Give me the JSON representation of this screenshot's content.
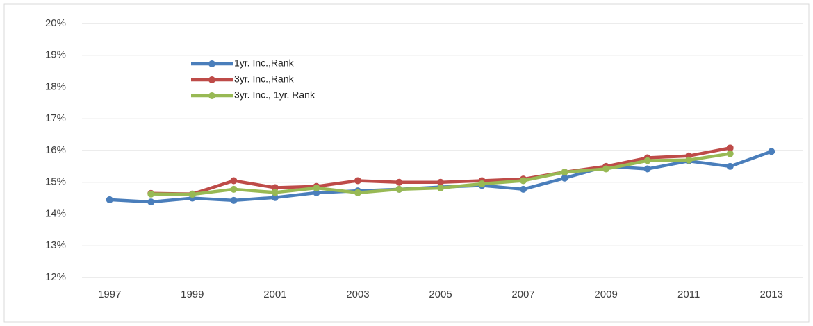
{
  "chart_data": {
    "type": "line",
    "categories": [
      "1997",
      null,
      "1999",
      null,
      "2001",
      null,
      "2003",
      null,
      "2005",
      null,
      "2007",
      null,
      "2009",
      null,
      "2011",
      null,
      "2013"
    ],
    "series": [
      {
        "name": "1yr. Inc.,Rank",
        "color": "#4a7ebb",
        "values": [
          14.45,
          14.38,
          14.5,
          14.43,
          14.52,
          14.67,
          14.73,
          14.78,
          14.85,
          14.9,
          14.78,
          15.13,
          15.5,
          15.42,
          15.67,
          15.5,
          15.97
        ]
      },
      {
        "name": "3yr. Inc.,Rank",
        "color": "#be4b48",
        "values": [
          null,
          14.65,
          14.63,
          15.05,
          14.83,
          14.87,
          15.05,
          15.0,
          15.0,
          15.05,
          15.1,
          15.32,
          15.5,
          15.77,
          15.83,
          16.08,
          null
        ]
      },
      {
        "name": "3yr. Inc., 1yr. Rank",
        "color": "#98b954",
        "values": [
          null,
          14.63,
          14.62,
          14.78,
          14.68,
          14.82,
          14.67,
          14.78,
          14.82,
          14.95,
          15.05,
          15.32,
          15.42,
          15.68,
          15.7,
          15.9,
          null
        ]
      }
    ],
    "ylim": [
      12,
      20
    ],
    "yticks": [
      {
        "value": 12,
        "label": "12%"
      },
      {
        "value": 13,
        "label": "13%"
      },
      {
        "value": 14,
        "label": "14%"
      },
      {
        "value": 15,
        "label": "15%"
      },
      {
        "value": 16,
        "label": "16%"
      },
      {
        "value": 17,
        "label": "17%"
      },
      {
        "value": 18,
        "label": "18%"
      },
      {
        "value": 19,
        "label": "19%"
      },
      {
        "value": 20,
        "label": "20%"
      }
    ],
    "grid": true,
    "legend": "top-left"
  }
}
